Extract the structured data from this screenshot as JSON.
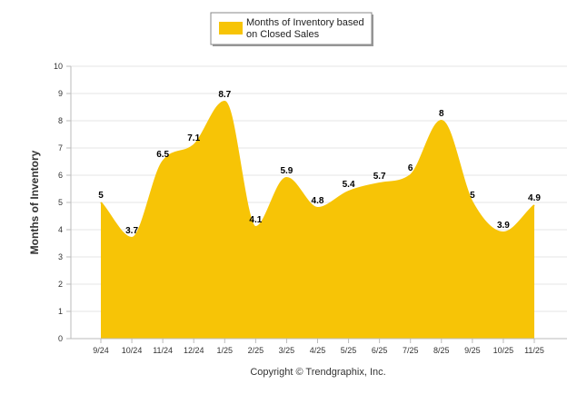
{
  "chart_data": {
    "type": "area",
    "title": "",
    "xlabel": "",
    "ylabel": "Months of Inventory",
    "ylim": [
      0,
      10
    ],
    "yticks": [
      0,
      1,
      2,
      3,
      4,
      5,
      6,
      7,
      8,
      9,
      10
    ],
    "grid": true,
    "legend_position": "top-center",
    "categories": [
      "9/24",
      "10/24",
      "11/24",
      "12/24",
      "1/25",
      "2/25",
      "3/25",
      "4/25",
      "5/25",
      "6/25",
      "7/25",
      "8/25",
      "9/25",
      "10/25",
      "11/25"
    ],
    "series": [
      {
        "name": "Months of Inventory based on Closed Sales",
        "legend_lines": [
          "Months of Inventory based",
          "on Closed Sales"
        ],
        "color": "#F7C406",
        "values": [
          5,
          3.7,
          6.5,
          7.1,
          8.7,
          4.1,
          5.9,
          4.8,
          5.4,
          5.7,
          6,
          8,
          5,
          3.9,
          4.9
        ]
      }
    ]
  },
  "footer": {
    "copyright": "Copyright © Trendgraphix, Inc."
  }
}
